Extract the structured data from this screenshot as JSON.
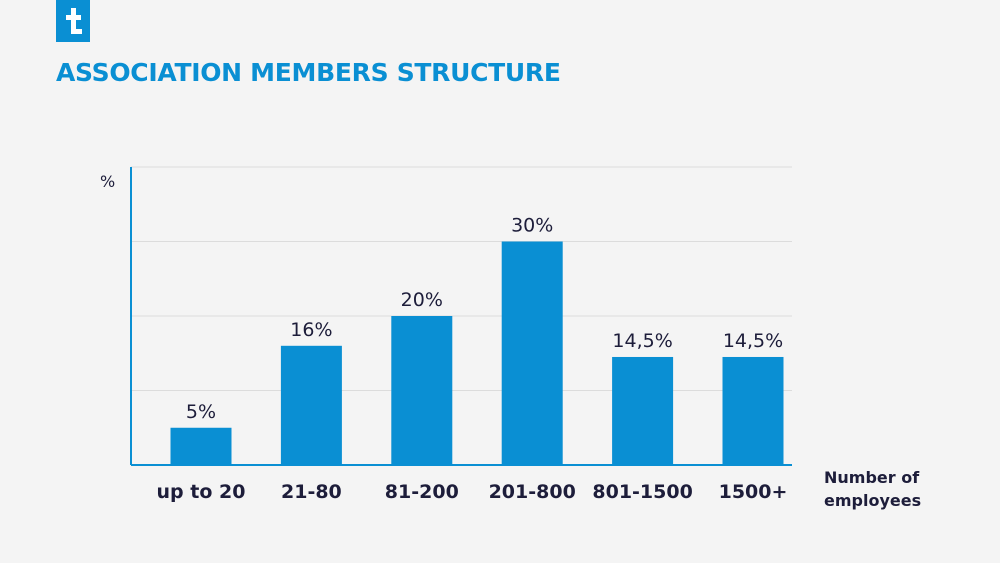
{
  "colors": {
    "brand": "#0a8fd3",
    "bar": "#0a8fd3",
    "text": "#1d1d3a",
    "grid": "#dcdcdc",
    "axis": "#0a8fd3",
    "background": "#f4f4f4"
  },
  "logo": {
    "icon": "brand-logo-icon"
  },
  "chart_data": {
    "type": "bar",
    "title": "ASSOCIATION MEMBERS STRUCTURE",
    "ylabel": "%",
    "xlabel": "Number of employees",
    "categories": [
      "up to 20",
      "21-80",
      "81-200",
      "201-800",
      "801-1500",
      "1500+"
    ],
    "values": [
      5,
      16,
      20,
      30,
      14.5,
      14.5
    ],
    "data_labels": [
      "5%",
      "16%",
      "20%",
      "30%",
      "14,5%",
      "14,5%"
    ],
    "ylim": [
      0,
      40
    ],
    "grid": true
  }
}
